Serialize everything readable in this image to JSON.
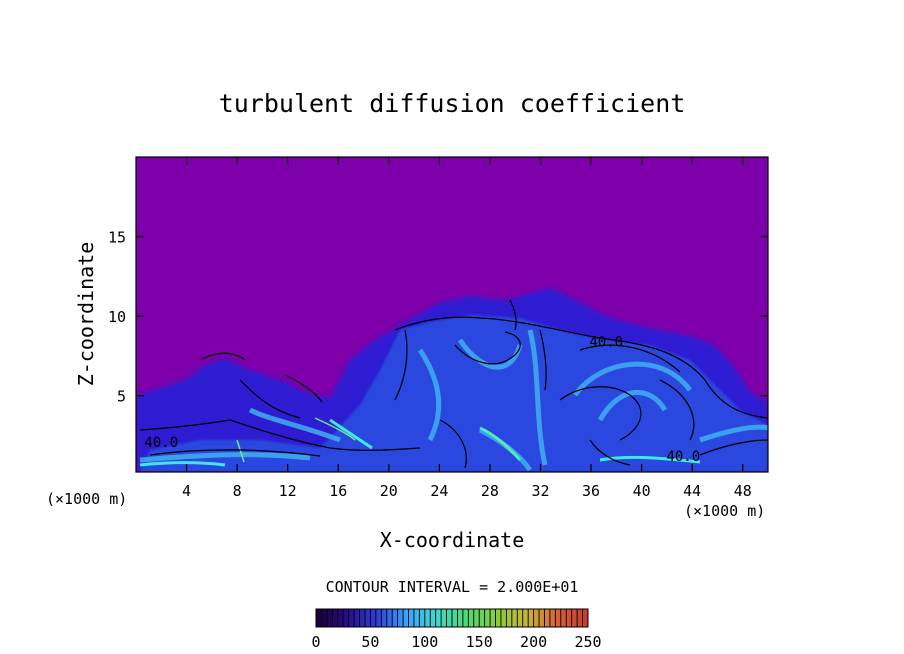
{
  "chart_data": {
    "type": "heatmap",
    "title": "turbulent diffusion coefficient",
    "xlabel": "X-coordinate",
    "ylabel": "Z-coordinate",
    "xlim": [
      0,
      50
    ],
    "ylim": [
      0.2,
      20
    ],
    "x_ticks": [
      4,
      8,
      12,
      16,
      20,
      24,
      28,
      32,
      36,
      40,
      44,
      48
    ],
    "y_ticks": [
      5,
      10,
      15
    ],
    "x_unit_left": "(×1000 m)",
    "x_unit_right": "(×1000 m)",
    "contour_interval_text": "CONTOUR INTERVAL = 2.000E+01",
    "contour_labels": [
      {
        "text": "40.0",
        "x": 2.0,
        "z": 2.1
      },
      {
        "text": "40.0",
        "x": 37.2,
        "z": 8.4
      },
      {
        "text": "40.0",
        "x": 43.3,
        "z": 1.2
      }
    ],
    "colorbar": {
      "min": 0,
      "max": 250,
      "ticks": [
        0,
        50,
        100,
        150,
        200,
        250
      ],
      "colors": [
        "#1a0033",
        "#2a0a8a",
        "#2f3fd6",
        "#3aa3ff",
        "#3fd9c8",
        "#4ed874",
        "#8acd3c",
        "#c8b43a",
        "#d8603a",
        "#c83a2a"
      ]
    },
    "background_color": "#7e00aa"
  }
}
